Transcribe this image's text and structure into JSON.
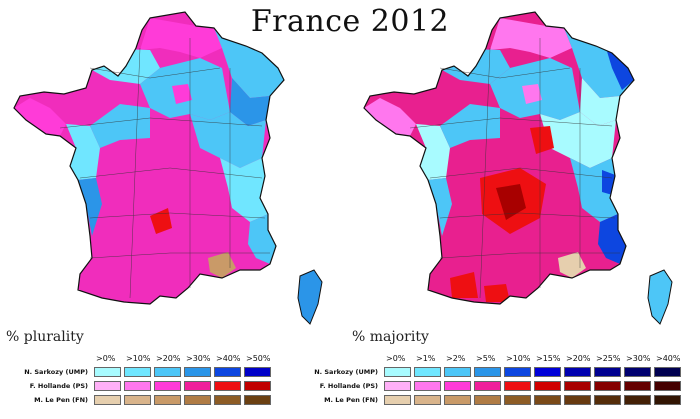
{
  "title": "France 2012",
  "maps": [
    {
      "caption": "% plurality"
    },
    {
      "caption": "% majority"
    }
  ],
  "legend_left": {
    "headers": [
      ">0%",
      ">10%",
      ">20%",
      ">30%",
      ">40%",
      ">50%"
    ],
    "rows": [
      {
        "label": "N. Sarkozy (UMP)",
        "colors": [
          "#a8fbff",
          "#70e6ff",
          "#4dc6f7",
          "#2b95e8",
          "#0d46e0",
          "#0000c8"
        ]
      },
      {
        "label": "F. Hollande (PS)",
        "colors": [
          "#ffb0f7",
          "#ff77ee",
          "#ff3bd8",
          "#f0209b",
          "#ee0f12",
          "#c00000"
        ]
      },
      {
        "label": "M. Le Pen (FN)",
        "colors": [
          "#e6cfae",
          "#d9b48b",
          "#c99a68",
          "#b07c45",
          "#8d5c25",
          "#6b4012"
        ]
      }
    ]
  },
  "legend_right": {
    "headers": [
      ">0%",
      ">1%",
      ">2%",
      ">5%",
      ">10%",
      ">15%",
      ">20%",
      ">25%",
      ">30%",
      ">40%"
    ],
    "rows": [
      {
        "label": "N. Sarkozy (UMP)",
        "colors": [
          "#a8fbff",
          "#70e6ff",
          "#4dc6f7",
          "#2b95e8",
          "#0d46e0",
          "#0000d8",
          "#0000b0",
          "#000090",
          "#000070",
          "#000050"
        ]
      },
      {
        "label": "F. Hollande (PS)",
        "colors": [
          "#ffb0f7",
          "#ff77ee",
          "#ff3bd8",
          "#f0209b",
          "#ee0f12",
          "#d00000",
          "#a80000",
          "#850000",
          "#650000",
          "#450000"
        ]
      },
      {
        "label": "M. Le Pen (FN)",
        "colors": [
          "#e6cfae",
          "#d9b48b",
          "#c99a68",
          "#b07c45",
          "#8d5c25",
          "#7a4a18",
          "#673a10",
          "#552d0a",
          "#432006",
          "#321503"
        ]
      }
    ]
  },
  "map_colors": {
    "left": {
      "base": "#f02dbc",
      "regions": [
        {
          "party": "UMP",
          "color": "#4dc6f7"
        },
        {
          "party": "UMP",
          "color": "#70e6ff"
        },
        {
          "party": "UMP",
          "color": "#2b95e8"
        },
        {
          "party": "PS",
          "color": "#ff3bd8"
        },
        {
          "party": "PS",
          "color": "#ee0f12"
        },
        {
          "party": "FN",
          "color": "#c99a68"
        }
      ]
    },
    "right": {
      "base": "#e8208f",
      "regions": [
        {
          "party": "UMP",
          "color": "#4dc6f7"
        },
        {
          "party": "UMP",
          "color": "#a8fbff"
        },
        {
          "party": "UMP",
          "color": "#0d46e0"
        },
        {
          "party": "PS",
          "color": "#ee0f12"
        },
        {
          "party": "PS",
          "color": "#a80000"
        },
        {
          "party": "PS",
          "color": "#ff77ee"
        },
        {
          "party": "FN",
          "color": "#e6cfae"
        }
      ]
    }
  }
}
